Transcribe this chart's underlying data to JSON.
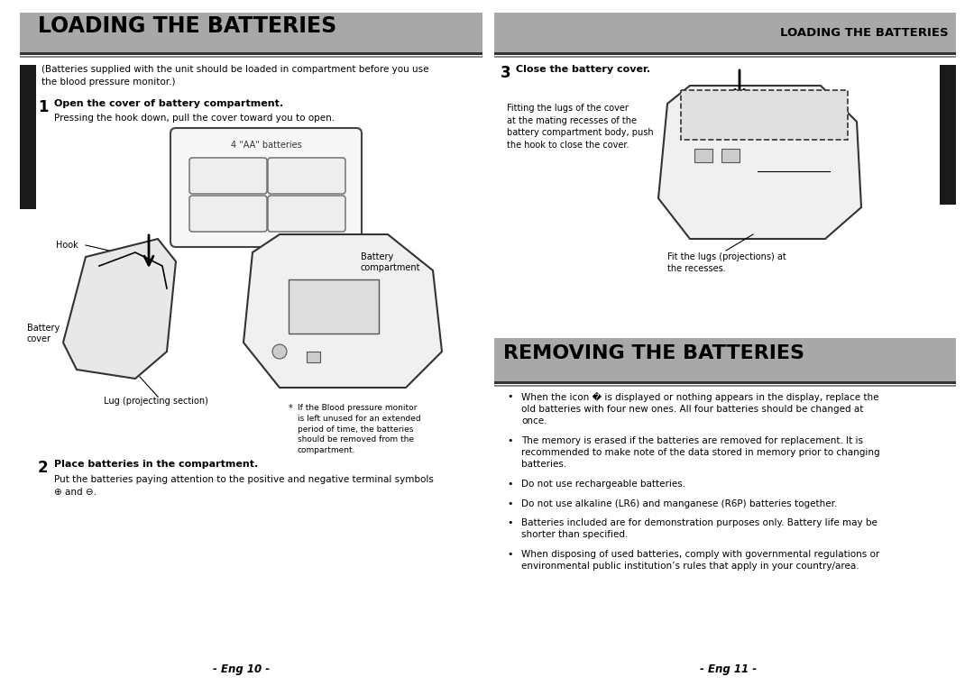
{
  "bg_color": "#ffffff",
  "header_bg": "#a8a8a8",
  "header_text_left": "LOADING THE BATTERIES",
  "header_text_right": "LOADING THE BATTERIES",
  "section2_header": "REMOVING THE BATTERIES",
  "section2_header_bg": "#a8a8a8",
  "sidebar_bg": "#1a1a1a",
  "sidebar_text_color": "#ffffff",
  "text_color": "#000000",
  "footer_left": "- Eng 10 -",
  "footer_right": "- Eng 11 -",
  "intro_text": "(Batteries supplied with the unit should be loaded in compartment before you use\nthe blood pressure monitor.)",
  "step1_head": "Open the cover of battery compartment.",
  "step1_body": "Pressing the hook down, pull the cover toward you to open.",
  "step2_head": "Place batteries in the compartment.",
  "step2_body": "Put the batteries paying attention to the positive and negative terminal symbols\n⊕ and ⊖.",
  "step3_head": "Close the battery cover.",
  "footnote": "If the Blood pressure monitor\nis left unused for an extended\nperiod of time, the batteries\nshould be removed from the\ncompartment.",
  "fitting_text": "Fitting the lugs of the cover\nat the mating recesses of the\nbattery compartment body, push\nthe hook to close the cover.",
  "fit_lugs_text": "Fit the lugs (projections) at\nthe recesses.",
  "bullets": [
    "When the icon � is displayed or nothing appears in the display, replace the old batteries with four new ones. All four batteries should be changed at once.",
    "The memory is erased if the batteries are removed for replacement. It is recommended to make note of the data stored in memory prior to changing batteries.",
    "Do not use rechargeable batteries.",
    "Do not use alkaline (LR6) and manganese (R6P) batteries together.",
    "Batteries included are for demonstration purposes only. Battery life may be shorter than specified.",
    "When disposing of used batteries, comply with governmental regulations or environmental public institution’s rules that apply in your country/area."
  ]
}
